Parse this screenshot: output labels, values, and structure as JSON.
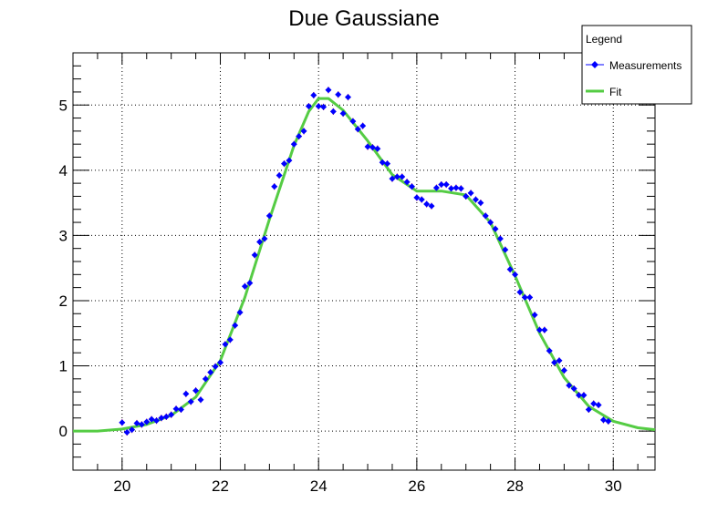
{
  "chart_data": {
    "type": "scatter",
    "title": "Due Gaussiane",
    "xlabel": "",
    "ylabel": "",
    "xlim": [
      19,
      30.85
    ],
    "ylim": [
      -0.6,
      5.8
    ],
    "x_ticks": [
      20,
      22,
      24,
      26,
      28,
      30
    ],
    "y_ticks": [
      0,
      1,
      2,
      3,
      4,
      5
    ],
    "grid": true,
    "legend": {
      "title": "Legend",
      "position": "top-right",
      "entries": [
        "Measurements",
        "Fit"
      ]
    },
    "series": [
      {
        "name": "Measurements",
        "color": "#0000ff",
        "error_color": "#ff0000",
        "marker": "diamond",
        "y_error": 0.05,
        "points": [
          [
            20.0,
            0.13
          ],
          [
            20.1,
            -0.02
          ],
          [
            20.2,
            0.02
          ],
          [
            20.3,
            0.12
          ],
          [
            20.4,
            0.1
          ],
          [
            20.5,
            0.14
          ],
          [
            20.6,
            0.18
          ],
          [
            20.7,
            0.16
          ],
          [
            20.8,
            0.2
          ],
          [
            20.9,
            0.22
          ],
          [
            21.0,
            0.25
          ],
          [
            21.1,
            0.34
          ],
          [
            21.2,
            0.33
          ],
          [
            21.3,
            0.57
          ],
          [
            21.4,
            0.45
          ],
          [
            21.5,
            0.62
          ],
          [
            21.6,
            0.48
          ],
          [
            21.7,
            0.8
          ],
          [
            21.8,
            0.9
          ],
          [
            21.9,
            0.99
          ],
          [
            22.0,
            1.05
          ],
          [
            22.1,
            1.33
          ],
          [
            22.2,
            1.4
          ],
          [
            22.3,
            1.62
          ],
          [
            22.4,
            1.82
          ],
          [
            22.5,
            2.22
          ],
          [
            22.6,
            2.27
          ],
          [
            22.7,
            2.7
          ],
          [
            22.8,
            2.9
          ],
          [
            22.9,
            2.95
          ],
          [
            23.0,
            3.3
          ],
          [
            23.1,
            3.75
          ],
          [
            23.2,
            3.92
          ],
          [
            23.3,
            4.1
          ],
          [
            23.4,
            4.15
          ],
          [
            23.5,
            4.4
          ],
          [
            23.6,
            4.52
          ],
          [
            23.7,
            4.6
          ],
          [
            23.8,
            4.98
          ],
          [
            23.9,
            5.15
          ],
          [
            24.0,
            4.98
          ],
          [
            24.1,
            4.97
          ],
          [
            24.2,
            5.23
          ],
          [
            24.3,
            4.9
          ],
          [
            24.4,
            5.16
          ],
          [
            24.5,
            4.87
          ],
          [
            24.6,
            5.12
          ],
          [
            24.7,
            4.75
          ],
          [
            24.8,
            4.63
          ],
          [
            24.9,
            4.68
          ],
          [
            25.0,
            4.36
          ],
          [
            25.1,
            4.35
          ],
          [
            25.2,
            4.33
          ],
          [
            25.3,
            4.12
          ],
          [
            25.4,
            4.1
          ],
          [
            25.5,
            3.87
          ],
          [
            25.6,
            3.9
          ],
          [
            25.7,
            3.9
          ],
          [
            25.8,
            3.82
          ],
          [
            25.9,
            3.75
          ],
          [
            26.0,
            3.58
          ],
          [
            26.1,
            3.55
          ],
          [
            26.2,
            3.48
          ],
          [
            26.3,
            3.45
          ],
          [
            26.4,
            3.73
          ],
          [
            26.5,
            3.78
          ],
          [
            26.6,
            3.78
          ],
          [
            26.7,
            3.72
          ],
          [
            26.8,
            3.73
          ],
          [
            26.9,
            3.72
          ],
          [
            27.0,
            3.6
          ],
          [
            27.1,
            3.65
          ],
          [
            27.2,
            3.55
          ],
          [
            27.3,
            3.5
          ],
          [
            27.4,
            3.3
          ],
          [
            27.5,
            3.2
          ],
          [
            27.6,
            3.1
          ],
          [
            27.7,
            2.95
          ],
          [
            27.8,
            2.78
          ],
          [
            27.9,
            2.48
          ],
          [
            28.0,
            2.4
          ],
          [
            28.1,
            2.13
          ],
          [
            28.2,
            2.05
          ],
          [
            28.3,
            2.05
          ],
          [
            28.4,
            1.78
          ],
          [
            28.5,
            1.55
          ],
          [
            28.6,
            1.55
          ],
          [
            28.7,
            1.23
          ],
          [
            28.8,
            1.05
          ],
          [
            28.9,
            1.08
          ],
          [
            29.0,
            0.93
          ],
          [
            29.1,
            0.7
          ],
          [
            29.2,
            0.65
          ],
          [
            29.3,
            0.55
          ],
          [
            29.4,
            0.55
          ],
          [
            29.5,
            0.33
          ],
          [
            29.6,
            0.42
          ],
          [
            29.7,
            0.4
          ],
          [
            29.8,
            0.17
          ],
          [
            29.9,
            0.15
          ]
        ]
      },
      {
        "name": "Fit",
        "color": "#55cc44",
        "type": "line",
        "points": [
          [
            19.0,
            0.0
          ],
          [
            19.5,
            0.0
          ],
          [
            20.0,
            0.03
          ],
          [
            20.5,
            0.1
          ],
          [
            21.0,
            0.24
          ],
          [
            21.5,
            0.52
          ],
          [
            22.0,
            1.08
          ],
          [
            22.5,
            2.05
          ],
          [
            23.0,
            3.25
          ],
          [
            23.5,
            4.38
          ],
          [
            23.8,
            4.9
          ],
          [
            24.0,
            5.1
          ],
          [
            24.2,
            5.1
          ],
          [
            24.5,
            4.92
          ],
          [
            25.0,
            4.45
          ],
          [
            25.5,
            3.93
          ],
          [
            26.0,
            3.68
          ],
          [
            26.5,
            3.68
          ],
          [
            27.0,
            3.62
          ],
          [
            27.5,
            3.2
          ],
          [
            28.0,
            2.38
          ],
          [
            28.5,
            1.5
          ],
          [
            29.0,
            0.82
          ],
          [
            29.5,
            0.38
          ],
          [
            30.0,
            0.15
          ],
          [
            30.5,
            0.05
          ],
          [
            30.85,
            0.02
          ]
        ]
      }
    ]
  }
}
